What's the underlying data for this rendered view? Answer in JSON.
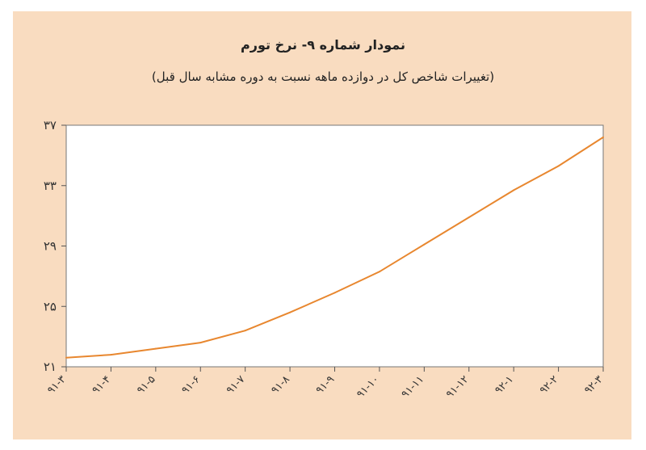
{
  "chart_data": {
    "type": "line",
    "title": "نمودار شماره ۹- نرخ تورم",
    "subtitle": "(تغییرات شاخص کل در دوازده ماهه نسبت به دوره مشابه سال قبل)",
    "xlabel": "",
    "ylabel": "",
    "categories": [
      "۹۱-۳",
      "۹۱-۴",
      "۹۱-۵",
      "۹۱-۶",
      "۹۱-۷",
      "۹۱-۸",
      "۹۱-۹",
      "۹۱-۱۰",
      "۹۱-۱۱",
      "۹۱-۱۲",
      "۹۲-۱",
      "۹۲-۲",
      "۹۲-۳"
    ],
    "series": [
      {
        "values": [
          21.6,
          21.8,
          22.2,
          22.6,
          23.4,
          24.6,
          25.9,
          27.3,
          29.1,
          30.9,
          32.7,
          34.3,
          36.2
        ]
      }
    ],
    "ylim": [
      21,
      37
    ],
    "yticks": [
      21,
      25,
      29,
      33,
      37
    ],
    "ytick_labels": [
      "۲۱",
      "۲۵",
      "۲۹",
      "۳۳",
      "۳۷"
    ],
    "line_color": "#e8872f",
    "background_color": "#f9dcc0",
    "plot_color": "#ffffff",
    "grid": false,
    "legend": "none"
  }
}
